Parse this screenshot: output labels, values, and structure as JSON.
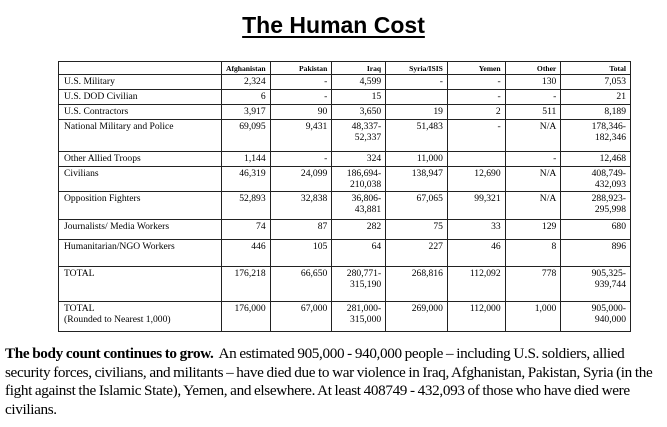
{
  "title": "The Human Cost",
  "table": {
    "headers": [
      "",
      "Afghanistan",
      "Pakistan",
      "Iraq",
      "Syria/ISIS",
      "Yemen",
      "Other",
      "Total"
    ],
    "rows": [
      {
        "label": "U.S. Military",
        "cells": [
          "2,324",
          "-",
          "4,599",
          "-",
          "-",
          "130",
          "7,053"
        ]
      },
      {
        "label": "U.S. DOD Civilian",
        "cells": [
          "6",
          "-",
          "15",
          "",
          "-",
          "-",
          "21"
        ]
      },
      {
        "label": "U.S. Contractors",
        "cells": [
          "3,917",
          "90",
          "3,650",
          "19",
          "2",
          "511",
          "8,189"
        ]
      },
      {
        "label": "National Military and Police",
        "cells": [
          "69,095",
          "9,431",
          "48,337-\n52,337",
          "51,483",
          "-",
          "N/A",
          "178,346-\n182,346"
        ]
      },
      {
        "label": "Other Allied Troops",
        "cells": [
          "1,144",
          "-",
          "324",
          "11,000",
          "",
          "-",
          "12,468"
        ]
      },
      {
        "label": "Civilians",
        "cells": [
          "46,319",
          "24,099",
          "186,694-\n210,038",
          "138,947",
          "12,690",
          "N/A",
          "408,749-\n432,093"
        ]
      },
      {
        "label": "Opposition Fighters",
        "cells": [
          "52,893",
          "32,838",
          "36,806-\n43,881",
          "67,065",
          "99,321",
          "N/A",
          "288,923-\n295,998"
        ]
      },
      {
        "label": "Journalists/ Media Workers",
        "cells": [
          "74",
          "87",
          "282",
          "75",
          "33",
          "129",
          "680"
        ]
      },
      {
        "label": "Humanitarian/NGO Workers",
        "cells": [
          "446",
          "105",
          "64",
          "227",
          "46",
          "8",
          "896"
        ]
      },
      {
        "label": "TOTAL",
        "cells": [
          "176,218",
          "66,650",
          "280,771-\n315,190",
          "268,816",
          "112,092",
          "778",
          "905,325-\n939,744"
        ]
      },
      {
        "label": "TOTAL\n(Rounded to Nearest 1,000)",
        "cells": [
          "176,000",
          "67,000",
          "281,000-\n315,000",
          "269,000",
          "112,000",
          "1,000",
          "905,000-\n940,000"
        ]
      }
    ]
  },
  "paragraph": {
    "lead": "The body count continues to grow.",
    "body": "An estimated 905,000 - 940,000 people – including U.S. soldiers, allied security forces, civilians, and militants – have died due to war violence in Iraq, Afghanistan, Pakistan, Syria (in the fight against the Islamic State), Yemen, and elsewhere. At least 408749 - 432,093 of those who have died were civilians."
  }
}
